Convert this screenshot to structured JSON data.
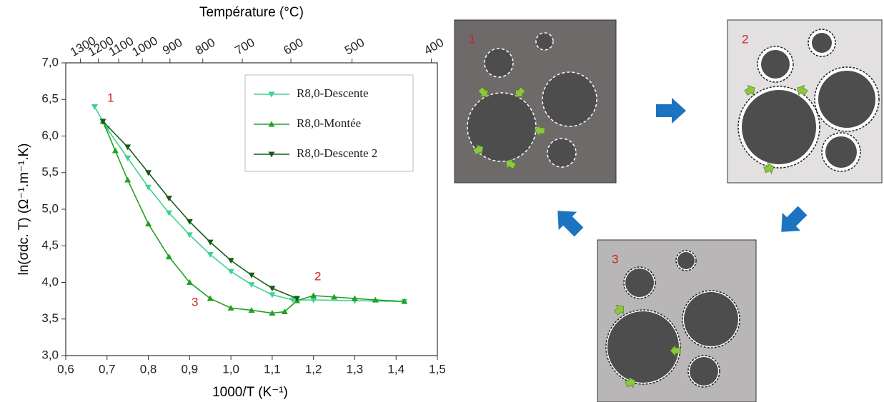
{
  "chart_data": {
    "type": "line",
    "top_axis_label": "Température (°C)",
    "top_ticks": [
      1300,
      1200,
      1100,
      1000,
      900,
      800,
      700,
      600,
      500,
      400
    ],
    "xlabel": "1000/T (K⁻¹)",
    "ylabel": "ln(σdc. T) (Ω⁻¹.m⁻¹.K)",
    "xlim": [
      0.6,
      1.5
    ],
    "ylim": [
      3.0,
      7.0
    ],
    "xticks": [
      {
        "value": 0.6,
        "label": "0,6"
      },
      {
        "value": 0.7,
        "label": "0,7"
      },
      {
        "value": 0.8,
        "label": "0,8"
      },
      {
        "value": 0.9,
        "label": "0,9"
      },
      {
        "value": 1.0,
        "label": "1,0"
      },
      {
        "value": 1.1,
        "label": "1,1"
      },
      {
        "value": 1.2,
        "label": "1,2"
      },
      {
        "value": 1.3,
        "label": "1,3"
      },
      {
        "value": 1.4,
        "label": "1,4"
      },
      {
        "value": 1.5,
        "label": "1,5"
      }
    ],
    "yticks": [
      {
        "value": 3.0,
        "label": "3,0"
      },
      {
        "value": 3.5,
        "label": "3,5"
      },
      {
        "value": 4.0,
        "label": "4,0"
      },
      {
        "value": 4.5,
        "label": "4,5"
      },
      {
        "value": 5.0,
        "label": "5,0"
      },
      {
        "value": 5.5,
        "label": "5,5"
      },
      {
        "value": 6.0,
        "label": "6,0"
      },
      {
        "value": 6.5,
        "label": "6,5"
      },
      {
        "value": 7.0,
        "label": "7,0"
      }
    ],
    "series": [
      {
        "name": "R8,0-Descente",
        "color": "#3fd190",
        "marker": "down",
        "x": [
          0.67,
          0.7,
          0.75,
          0.8,
          0.85,
          0.9,
          0.95,
          1.0,
          1.05,
          1.1,
          1.15,
          1.2,
          1.3,
          1.42
        ],
        "values": [
          6.4,
          6.1,
          5.7,
          5.3,
          4.95,
          4.65,
          4.38,
          4.15,
          3.97,
          3.83,
          3.76,
          3.76,
          3.75,
          3.74
        ]
      },
      {
        "name": "R8,0-Montée",
        "color": "#22a022",
        "marker": "up",
        "x": [
          0.69,
          0.72,
          0.75,
          0.8,
          0.85,
          0.9,
          0.95,
          1.0,
          1.05,
          1.1,
          1.13,
          1.16,
          1.2,
          1.25,
          1.3,
          1.35,
          1.42
        ],
        "values": [
          6.2,
          5.8,
          5.4,
          4.8,
          4.35,
          4.0,
          3.78,
          3.65,
          3.62,
          3.58,
          3.6,
          3.75,
          3.82,
          3.8,
          3.78,
          3.76,
          3.74
        ]
      },
      {
        "name": "R8,0-Descente 2",
        "color": "#165c16",
        "marker": "down",
        "x": [
          0.69,
          0.75,
          0.8,
          0.85,
          0.9,
          0.95,
          1.0,
          1.05,
          1.1,
          1.16
        ],
        "values": [
          6.2,
          5.85,
          5.5,
          5.15,
          4.83,
          4.55,
          4.3,
          4.1,
          3.92,
          3.78
        ]
      }
    ],
    "annotations": [
      "1",
      "2",
      "3"
    ]
  },
  "diagram": {
    "panels": [
      {
        "label": "1"
      },
      {
        "label": "2"
      },
      {
        "label": "3"
      }
    ]
  }
}
